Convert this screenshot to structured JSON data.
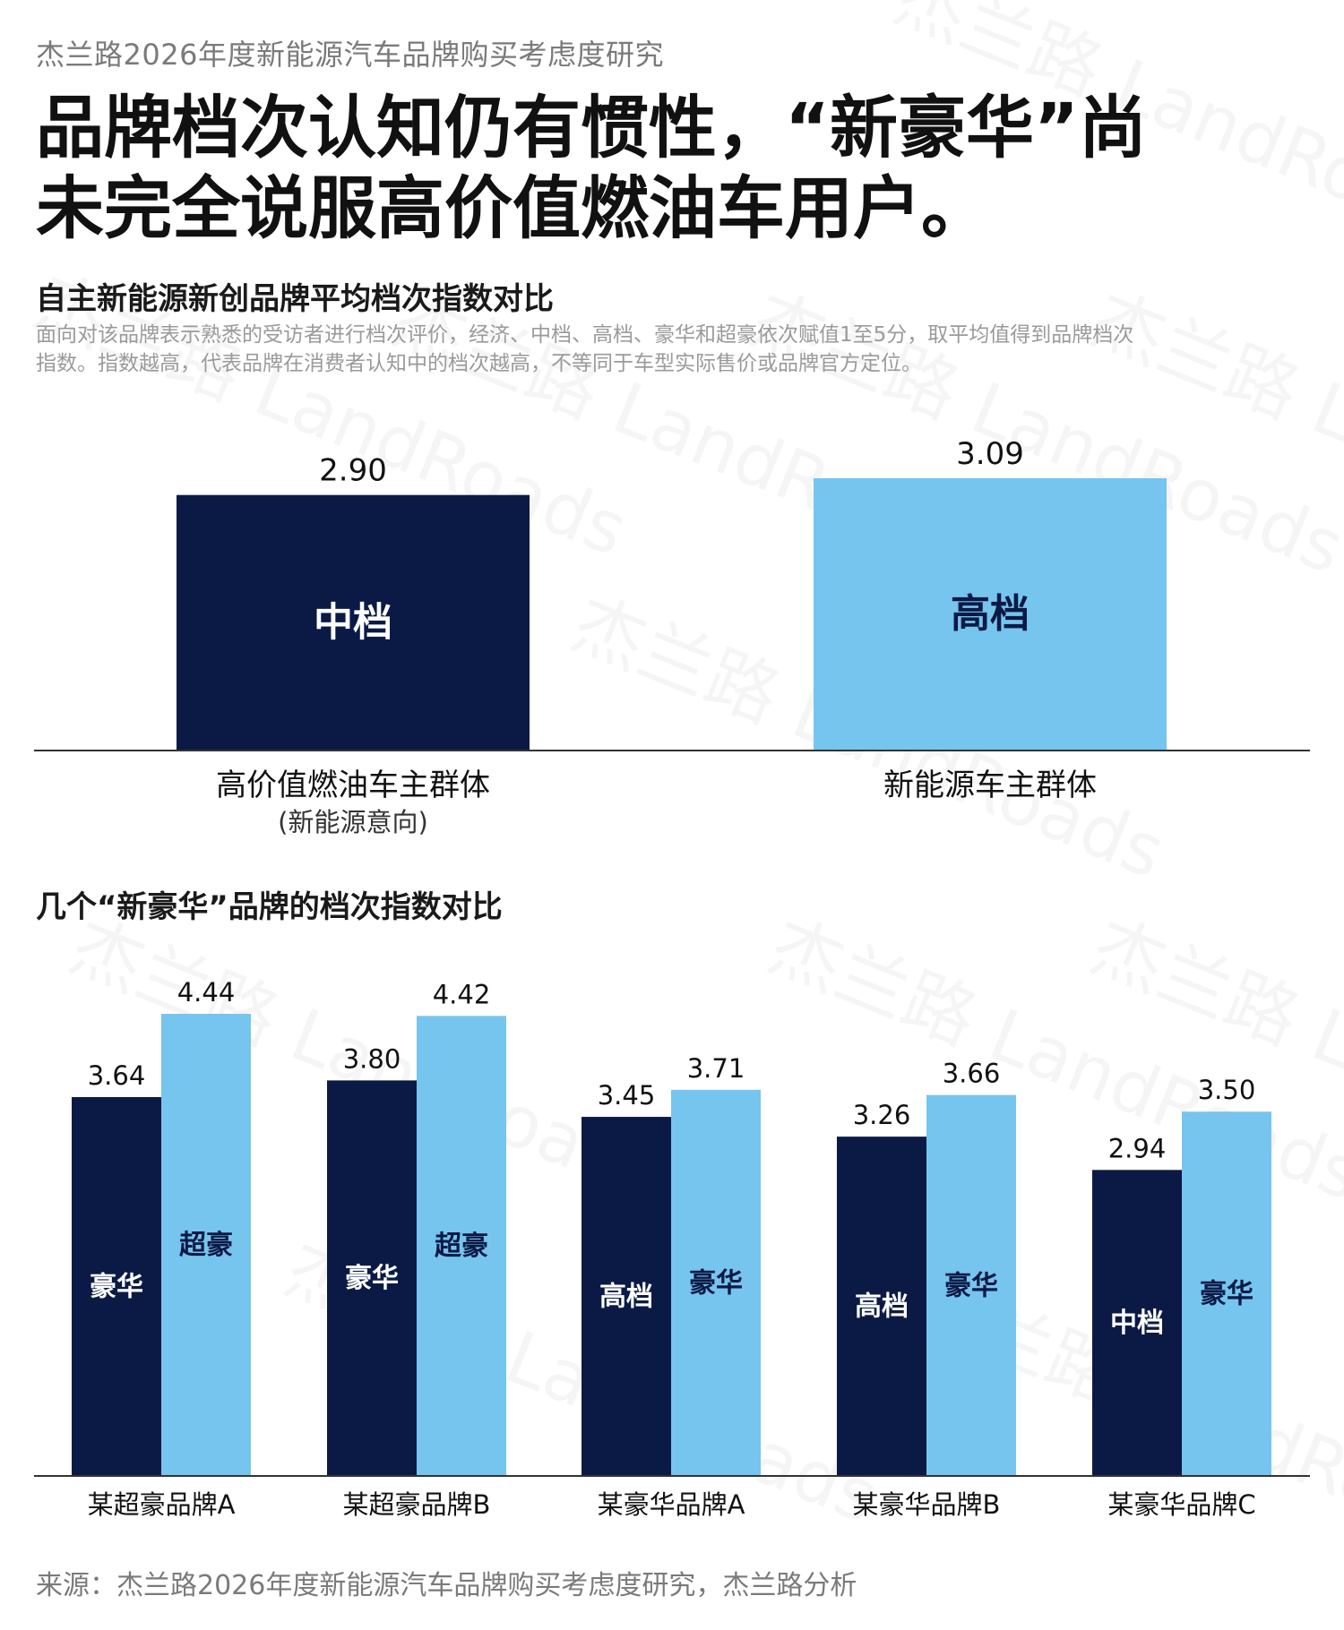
{
  "supertitle": "杰兰路2026年度新能源汽车品牌购买考虑度研究",
  "headline_line1": "品牌档次认知仍有惯性，“新豪华”尚",
  "headline_line2": "未完全说服高价值燃油车用户。",
  "watermark": "杰兰路 LandRoads",
  "colors": {
    "dark": "#0b1a45",
    "light": "#76c5ef",
    "axis": "#333333"
  },
  "chart_data": [
    {
      "type": "bar",
      "title": "自主新能源新创品牌平均档次指数对比",
      "note": "面向对该品牌表示熟悉的受访者进行档次评价，经济、中档、高档、豪华和超豪依次赋值1至5分，取平均值得到品牌档次指数。指数越高，代表品牌在消费者认知中的档次越高，不等同于车型实际售价或品牌官方定位。",
      "categories": [
        {
          "label": "高价值燃油车主群体",
          "sublabel": "(新能源意向)"
        },
        {
          "label": "新能源车主群体",
          "sublabel": ""
        }
      ],
      "values": [
        2.9,
        3.09
      ],
      "value_labels": [
        "2.90",
        "3.09"
      ],
      "bar_labels": [
        "中档",
        "高档"
      ],
      "colors": [
        "#0b1a45",
        "#76c5ef"
      ]
    },
    {
      "type": "bar",
      "title": "几个“新豪华”品牌的档次指数对比",
      "categories": [
        "某超豪品牌A",
        "某超豪品牌B",
        "某豪华品牌A",
        "某豪华品牌B",
        "某豪华品牌C"
      ],
      "series": [
        {
          "values": [
            3.64,
            3.8,
            3.45,
            3.26,
            2.94
          ],
          "value_labels": [
            "3.64",
            "3.80",
            "3.45",
            "3.26",
            "2.94"
          ],
          "bar_labels": [
            "豪华",
            "豪华",
            "高档",
            "高档",
            "中档"
          ],
          "color": "#0b1a45"
        },
        {
          "values": [
            4.44,
            4.42,
            3.71,
            3.66,
            3.5
          ],
          "value_labels": [
            "4.44",
            "4.42",
            "3.71",
            "3.66",
            "3.50"
          ],
          "bar_labels": [
            "超豪",
            "超豪",
            "豪华",
            "豪华",
            "豪华"
          ],
          "color": "#76c5ef"
        }
      ]
    }
  ],
  "source": "来源：杰兰路2026年度新能源汽车品牌购买考虑度研究，杰兰路分析"
}
